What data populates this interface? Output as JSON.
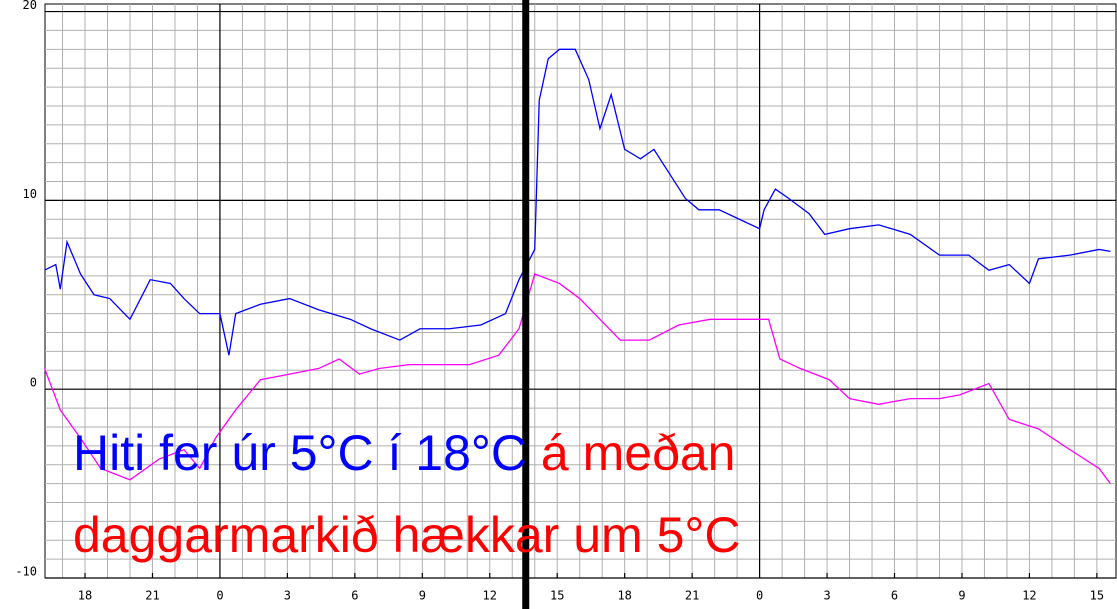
{
  "chart_data": {
    "type": "line",
    "annotation": [
      {
        "text": "Hiti fer úr 5°C í 18°C",
        "color": "#0000ff"
      },
      {
        "text": " á meðan",
        "color": "#ff0000"
      },
      {
        "text": "daggarmarkið hækkar um 5°C",
        "color": "#ff0000"
      }
    ],
    "series": [
      {
        "color": "#0000ff",
        "x": [
          16.2,
          16.7,
          16.9,
          17.2,
          17.8,
          18.4,
          19.1,
          20.0,
          20.9,
          21.8,
          22.4,
          23.1,
          24.0,
          24.4,
          24.7,
          25.8,
          27.1,
          28.4,
          29.8,
          30.7,
          32.0,
          32.9,
          34.2,
          35.6,
          36.7,
          37.3,
          38.0,
          38.2,
          38.6,
          39.1,
          39.8,
          40.4,
          40.9,
          41.4,
          42.0,
          42.7,
          43.3,
          44.0,
          44.7,
          45.3,
          46.2,
          47.1,
          48.0,
          48.2,
          48.7,
          49.3,
          50.2,
          50.9,
          52.0,
          53.3,
          54.7,
          56.0,
          57.3,
          58.2,
          59.1,
          60.0,
          60.4,
          61.8,
          63.1,
          63.6
        ],
        "values": [
          6.3,
          6.6,
          5.3,
          7.8,
          6.1,
          5.0,
          4.8,
          3.7,
          5.8,
          5.6,
          4.8,
          4.0,
          4.0,
          1.8,
          4.0,
          4.5,
          4.8,
          4.2,
          3.7,
          3.2,
          2.6,
          3.2,
          3.2,
          3.4,
          4.0,
          5.8,
          7.4,
          15.3,
          17.5,
          18.0,
          18.0,
          16.4,
          13.8,
          15.6,
          12.7,
          12.2,
          12.7,
          11.4,
          10.1,
          9.5,
          9.5,
          9.0,
          8.5,
          9.5,
          10.6,
          10.1,
          9.3,
          8.2,
          8.5,
          8.7,
          8.2,
          7.1,
          7.1,
          6.3,
          6.6,
          5.6,
          6.9,
          7.1,
          7.4,
          7.3
        ]
      },
      {
        "color": "#ff00ff",
        "x": [
          16.2,
          16.9,
          17.8,
          18.7,
          20.0,
          21.3,
          22.4,
          23.1,
          23.8,
          24.7,
          25.8,
          27.1,
          28.4,
          29.3,
          30.2,
          31.1,
          32.4,
          33.8,
          35.1,
          36.4,
          37.3,
          38.0,
          39.1,
          40.0,
          40.9,
          41.8,
          43.1,
          44.4,
          45.8,
          47.1,
          48.4,
          48.9,
          49.8,
          51.1,
          52.0,
          53.3,
          54.7,
          56.0,
          56.9,
          58.2,
          59.1,
          60.4,
          61.8,
          63.1,
          63.6
        ],
        "values": [
          1.1,
          -1.1,
          -2.6,
          -4.2,
          -4.8,
          -3.7,
          -3.2,
          -4.2,
          -2.6,
          -1.1,
          0.5,
          0.8,
          1.1,
          1.6,
          0.8,
          1.1,
          1.3,
          1.3,
          1.3,
          1.8,
          3.2,
          6.1,
          5.6,
          4.8,
          3.7,
          2.6,
          2.6,
          3.4,
          3.7,
          3.7,
          3.7,
          1.6,
          1.1,
          0.5,
          -0.5,
          -0.8,
          -0.5,
          -0.5,
          -0.3,
          0.3,
          -1.6,
          -2.1,
          -3.2,
          -4.2,
          -5.0
        ]
      }
    ],
    "xlim": [
      16.22,
      63.85
    ],
    "ylim": [
      -10,
      20.4
    ],
    "xticks": [
      {
        "value": 18,
        "label": "18"
      },
      {
        "value": 21,
        "label": "21"
      },
      {
        "value": 24,
        "label": "0"
      },
      {
        "value": 27,
        "label": "3"
      },
      {
        "value": 30,
        "label": "6"
      },
      {
        "value": 33,
        "label": "9"
      },
      {
        "value": 36,
        "label": "12"
      },
      {
        "value": 39,
        "label": "15"
      },
      {
        "value": 42,
        "label": "18"
      },
      {
        "value": 45,
        "label": "21"
      },
      {
        "value": 48,
        "label": "0"
      },
      {
        "value": 51,
        "label": "3"
      },
      {
        "value": 54,
        "label": "6"
      },
      {
        "value": 57,
        "label": "9"
      },
      {
        "value": 60,
        "label": "12"
      },
      {
        "value": 63,
        "label": "15"
      }
    ],
    "yticks": [
      -10,
      0,
      10,
      20
    ],
    "x_minor_step": 1,
    "y_minor_step": 1,
    "vline": 37.6,
    "grid": true
  }
}
